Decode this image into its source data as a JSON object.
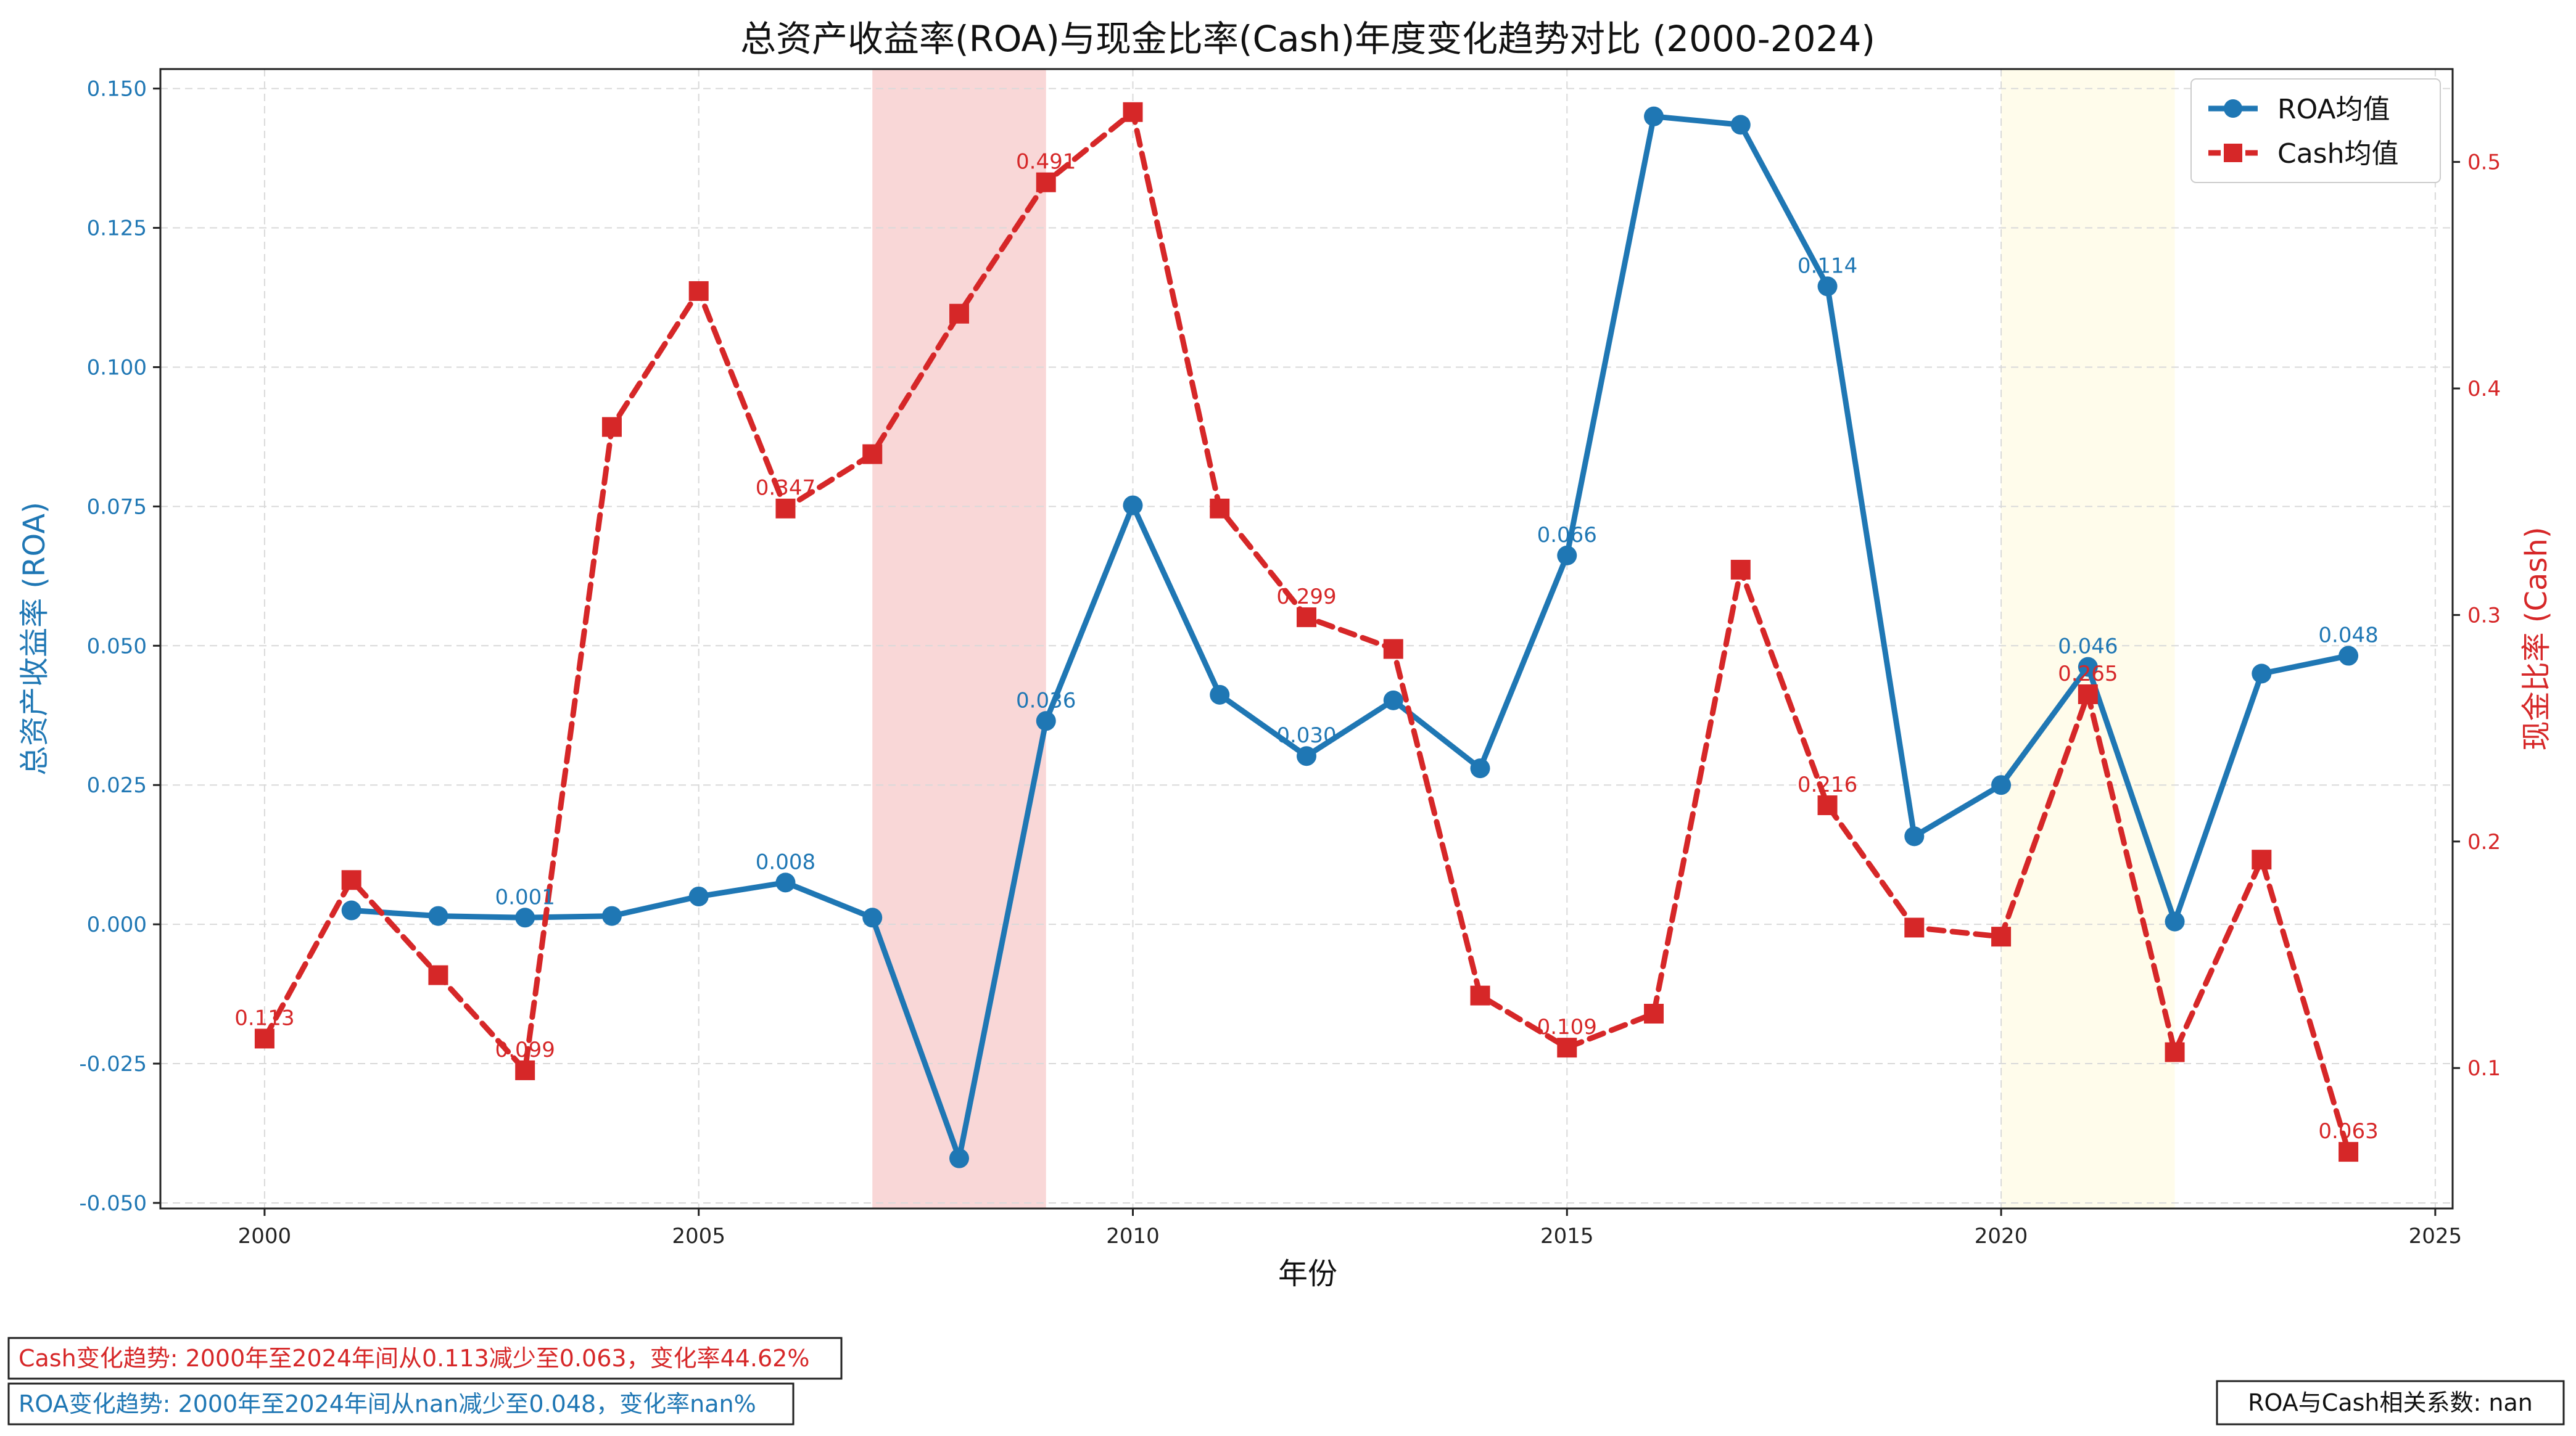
{
  "colors": {
    "roa": "#1f77b4",
    "cash": "#d62728",
    "highlight1": "#f4b6b6",
    "highlight2": "#fffbe6",
    "grid": "#d9d9d9"
  },
  "chart_data": {
    "type": "line",
    "title": "总资产收益率(ROA)与现金比率(Cash)年度变化趋势对比 (2000-2024)",
    "xlabel": "年份",
    "ylabel_left": "总资产收益率 (ROA)",
    "ylabel_right": "现金比率 (Cash)",
    "xlim": [
      1998.8,
      2025.2
    ],
    "ylim_left": [
      -0.051,
      0.1535
    ],
    "ylim_right": [
      0.038,
      0.541
    ],
    "x_ticks": [
      2000,
      2005,
      2010,
      2015,
      2020,
      2025
    ],
    "y_left_ticks": [
      "-0.050",
      "-0.025",
      "0.000",
      "0.025",
      "0.050",
      "0.075",
      "0.100",
      "0.125",
      "0.150"
    ],
    "y_right_ticks": [
      "0.1",
      "0.2",
      "0.3",
      "0.4",
      "0.5"
    ],
    "grid": true,
    "legend_position": "top-right",
    "highlight_spans": [
      {
        "from": 2007,
        "to": 2009,
        "style": "red"
      },
      {
        "from": 2020,
        "to": 2022,
        "style": "yellow"
      }
    ],
    "series": [
      {
        "name": "ROA均值",
        "axis": "left",
        "points": [
          {
            "x": 2001,
            "y": 0.0025
          },
          {
            "x": 2002,
            "y": 0.0015
          },
          {
            "x": 2003,
            "y": 0.0012
          },
          {
            "x": 2004,
            "y": 0.0015
          },
          {
            "x": 2005,
            "y": 0.005
          },
          {
            "x": 2006,
            "y": 0.0075
          },
          {
            "x": 2007,
            "y": 0.0012
          },
          {
            "x": 2008,
            "y": -0.042
          },
          {
            "x": 2009,
            "y": 0.0365
          },
          {
            "x": 2010,
            "y": 0.0752
          },
          {
            "x": 2011,
            "y": 0.0412
          },
          {
            "x": 2012,
            "y": 0.0302
          },
          {
            "x": 2013,
            "y": 0.0402
          },
          {
            "x": 2014,
            "y": 0.028
          },
          {
            "x": 2015,
            "y": 0.0662
          },
          {
            "x": 2016,
            "y": 0.145
          },
          {
            "x": 2017,
            "y": 0.1435
          },
          {
            "x": 2018,
            "y": 0.1145
          },
          {
            "x": 2019,
            "y": 0.0158
          },
          {
            "x": 2020,
            "y": 0.025
          },
          {
            "x": 2021,
            "y": 0.0462
          },
          {
            "x": 2022,
            "y": 0.0005
          },
          {
            "x": 2023,
            "y": 0.045
          },
          {
            "x": 2024,
            "y": 0.0482
          }
        ]
      },
      {
        "name": "Cash均值",
        "axis": "right",
        "points": [
          {
            "x": 2000,
            "y": 0.113
          },
          {
            "x": 2001,
            "y": 0.183
          },
          {
            "x": 2002,
            "y": 0.141
          },
          {
            "x": 2003,
            "y": 0.099
          },
          {
            "x": 2004,
            "y": 0.383
          },
          {
            "x": 2005,
            "y": 0.443
          },
          {
            "x": 2006,
            "y": 0.347
          },
          {
            "x": 2007,
            "y": 0.371
          },
          {
            "x": 2008,
            "y": 0.433
          },
          {
            "x": 2009,
            "y": 0.491
          },
          {
            "x": 2010,
            "y": 0.522
          },
          {
            "x": 2011,
            "y": 0.347
          },
          {
            "x": 2012,
            "y": 0.299
          },
          {
            "x": 2013,
            "y": 0.285
          },
          {
            "x": 2014,
            "y": 0.132
          },
          {
            "x": 2015,
            "y": 0.109
          },
          {
            "x": 2016,
            "y": 0.124
          },
          {
            "x": 2017,
            "y": 0.32
          },
          {
            "x": 2018,
            "y": 0.216
          },
          {
            "x": 2019,
            "y": 0.162
          },
          {
            "x": 2020,
            "y": 0.158
          },
          {
            "x": 2021,
            "y": 0.265
          },
          {
            "x": 2022,
            "y": 0.107
          },
          {
            "x": 2023,
            "y": 0.192
          },
          {
            "x": 2024,
            "y": 0.063
          }
        ]
      }
    ],
    "data_labels": [
      {
        "series": "ROA均值",
        "x": 2003,
        "text": "0.001"
      },
      {
        "series": "ROA均值",
        "x": 2006,
        "text": "0.008"
      },
      {
        "series": "ROA均值",
        "x": 2009,
        "text": "0.036"
      },
      {
        "series": "ROA均值",
        "x": 2012,
        "text": "0.030"
      },
      {
        "series": "ROA均值",
        "x": 2015,
        "text": "0.066"
      },
      {
        "series": "ROA均值",
        "x": 2018,
        "text": "0.114"
      },
      {
        "series": "ROA均值",
        "x": 2021,
        "text": "0.046"
      },
      {
        "series": "ROA均值",
        "x": 2024,
        "text": "0.048"
      },
      {
        "series": "Cash均值",
        "x": 2000,
        "text": "0.113"
      },
      {
        "series": "Cash均值",
        "x": 2003,
        "text": "0.099"
      },
      {
        "series": "Cash均值",
        "x": 2006,
        "text": "0.347"
      },
      {
        "series": "Cash均值",
        "x": 2009,
        "text": "0.491"
      },
      {
        "series": "Cash均值",
        "x": 2012,
        "text": "0.299"
      },
      {
        "series": "Cash均值",
        "x": 2015,
        "text": "0.109"
      },
      {
        "series": "Cash均值",
        "x": 2018,
        "text": "0.216"
      },
      {
        "series": "Cash均值",
        "x": 2021,
        "text": "0.265"
      },
      {
        "series": "Cash均值",
        "x": 2024,
        "text": "0.063"
      }
    ],
    "annotations": {
      "cash_trend": "Cash变化趋势: 2000年至2024年间从0.113减少至0.063，变化率44.62%",
      "roa_trend": "ROA变化趋势: 2000年至2024年间从nan减少至0.048，变化率nan%",
      "correlation": "ROA与Cash相关系数: nan"
    }
  }
}
